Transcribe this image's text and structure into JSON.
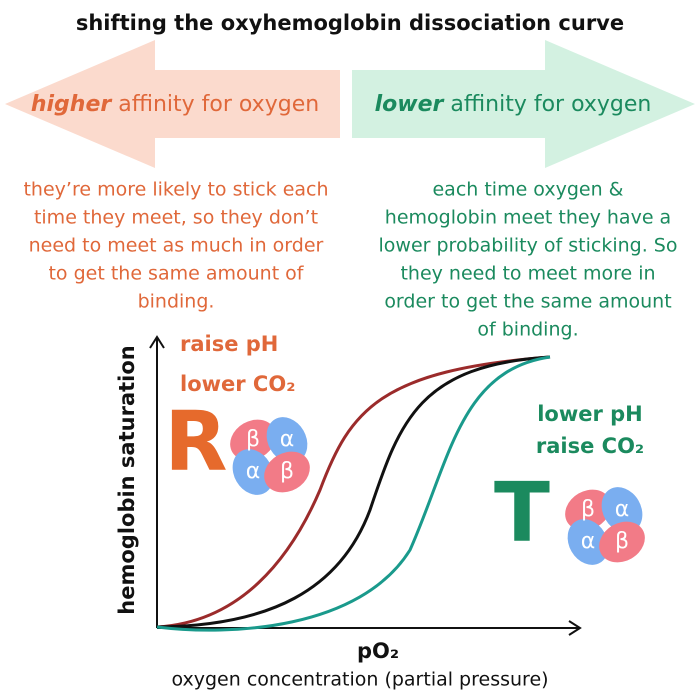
{
  "title": "shifting the oxyhemoglobin dissociation curve",
  "left_arrow": {
    "emphasis": "higher",
    "text": " affinity for oxygen"
  },
  "right_arrow": {
    "emphasis": "lower",
    "text": " affinity for oxygen"
  },
  "left_note": [
    "they’re more likely to stick each",
    "time they meet, so they don’t",
    "need to meet as much in order",
    "to get the same  amount of",
    "binding."
  ],
  "right_note": [
    "each time oxygen &",
    "hemoglobin meet they have a",
    "lower probability of sticking. So",
    "they need to meet more in",
    "order to get the same amount",
    "of binding."
  ],
  "left_conditions": [
    "raise pH",
    "lower CO₂"
  ],
  "right_conditions": [
    "lower pH",
    "raise CO₂"
  ],
  "left_state": "R",
  "right_state": "T",
  "subunits": [
    "β",
    "α",
    "α",
    "β"
  ],
  "y_axis_label": "hemoglobin saturation",
  "x_axis_label": "pO₂",
  "x_axis_caption": "oxygen concentration (partial pressure)"
}
